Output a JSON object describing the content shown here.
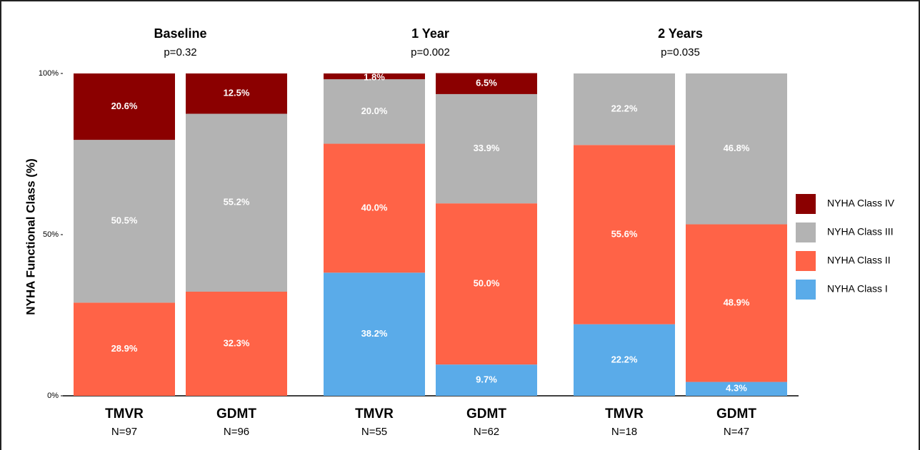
{
  "chart_data": {
    "type": "stacked_bar",
    "y_label": "NYHA Functional Class (%)",
    "panels": [
      {
        "title": "Baseline",
        "subtitle": "p=0.32",
        "categories": [
          "TMVR",
          "GDMT"
        ],
        "n_labels": [
          "N=97",
          "N=96"
        ]
      },
      {
        "title": "1 Year",
        "subtitle": "p=0.002",
        "categories": [
          "TMVR",
          "GDMT"
        ],
        "n_labels": [
          "N=55",
          "N=62"
        ]
      },
      {
        "title": "2 Years",
        "subtitle": "p=0.035",
        "categories": [
          "TMVR",
          "GDMT"
        ],
        "n_labels": [
          "N=18",
          "N=47"
        ]
      }
    ],
    "series": [
      {
        "name": "NYHA Class I",
        "color": "#5aabe9",
        "values": [
          null,
          null,
          38.2,
          9.7,
          22.2,
          4.3
        ],
        "value_labels": [
          null,
          null,
          "38.2%",
          "9.7%",
          "22.2%",
          "4.3%"
        ]
      },
      {
        "name": "NYHA Class II",
        "color": "#ff6347",
        "values": [
          28.9,
          32.3,
          40.0,
          50.0,
          55.6,
          48.9
        ],
        "value_labels": [
          "28.9%",
          "32.3%",
          "40.0%",
          "50.0%",
          "55.6%",
          "48.9%"
        ]
      },
      {
        "name": "NYHA Class III",
        "color": "#b3b3b3",
        "values": [
          50.5,
          55.2,
          20.0,
          33.9,
          22.2,
          46.8
        ],
        "value_labels": [
          "50.5%",
          "55.2%",
          "20.0%",
          "33.9%",
          "22.2%",
          "46.8%"
        ]
      },
      {
        "name": "NYHA Class IV",
        "color": "#8b0000",
        "values": [
          20.6,
          12.5,
          1.8,
          6.5,
          null,
          null
        ],
        "value_labels": [
          "20.6%",
          "12.5%",
          "1.8%",
          "6.5%",
          null,
          null
        ]
      }
    ],
    "ylim": [
      0,
      100
    ],
    "yticks": [
      {
        "value": 0,
        "label": "0%"
      },
      {
        "value": 50,
        "label": "50%"
      },
      {
        "value": 100,
        "label": "100%"
      }
    ]
  }
}
